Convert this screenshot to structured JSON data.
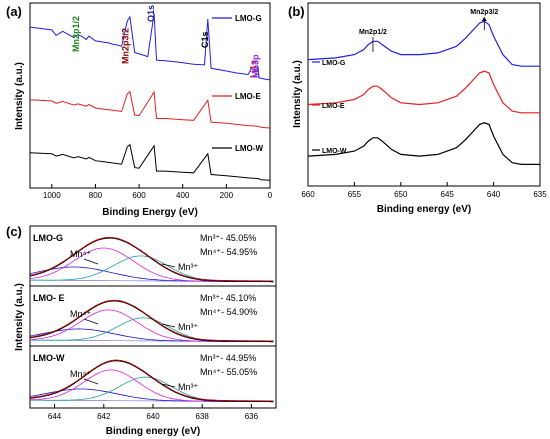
{
  "chart_data": [
    {
      "panel": "(a)",
      "type": "line",
      "xlabel": "Binding Energy (eV)",
      "ylabel": "Intensity (a.u.)",
      "xlim": [
        1100,
        0
      ],
      "xticks": [
        1000,
        800,
        600,
        400,
        200,
        0
      ],
      "y_ticks_shown": false,
      "grid": false,
      "legend_placement": "right, beside each trace",
      "series": [
        {
          "name": "LMO-G",
          "color": "#1f1fe6",
          "x": [
            1100,
            1000,
            980,
            950,
            900,
            880,
            860,
            842,
            830,
            800,
            760,
            740,
            720,
            700,
            680,
            654,
            642,
            620,
            600,
            560,
            531,
            520,
            480,
            420,
            350,
            300,
            285,
            270,
            200,
            150,
            100,
            85,
            60,
            55,
            50,
            20,
            0
          ],
          "y": [
            8.0,
            7.6,
            6.8,
            7.4,
            6.5,
            6.9,
            6.6,
            6.2,
            6.7,
            6.0,
            5.8,
            5.7,
            5.5,
            5.4,
            5.2,
            8.9,
            9.5,
            4.3,
            4.1,
            3.7,
            10.0,
            3.2,
            3.1,
            2.9,
            2.6,
            2.5,
            9.2,
            2.0,
            1.6,
            1.3,
            1.1,
            2.0,
            1.5,
            2.3,
            0.6,
            0.4,
            0.3
          ]
        },
        {
          "name": "LMO-E",
          "color": "#e62020",
          "x": [
            1100,
            1000,
            980,
            950,
            900,
            880,
            842,
            830,
            800,
            760,
            720,
            680,
            654,
            642,
            620,
            600,
            531,
            520,
            480,
            400,
            350,
            285,
            270,
            200,
            100,
            55,
            40,
            0
          ],
          "y": [
            6.0,
            5.8,
            5.4,
            5.7,
            5.1,
            5.3,
            4.9,
            5.2,
            4.6,
            4.4,
            4.2,
            4.0,
            7.0,
            7.4,
            3.4,
            3.3,
            7.3,
            2.8,
            2.8,
            2.6,
            2.5,
            5.9,
            2.2,
            2.0,
            1.6,
            1.5,
            1.3,
            1.2
          ]
        },
        {
          "name": "LMO-W",
          "color": "#000000",
          "x": [
            1100,
            1000,
            980,
            950,
            900,
            880,
            842,
            830,
            800,
            760,
            720,
            680,
            654,
            642,
            620,
            600,
            531,
            520,
            480,
            400,
            350,
            285,
            270,
            200,
            100,
            55,
            40,
            0
          ],
          "y": [
            5.8,
            5.6,
            5.2,
            5.5,
            4.9,
            5.1,
            4.7,
            5.0,
            4.4,
            4.2,
            4.0,
            3.8,
            6.8,
            7.2,
            3.2,
            3.1,
            7.0,
            2.6,
            2.6,
            2.4,
            2.3,
            5.6,
            2.0,
            1.8,
            1.4,
            1.3,
            1.1,
            1.0
          ]
        }
      ],
      "annotations": [
        {
          "text": "Mn2p1/2",
          "color": "#1a8a1a"
        },
        {
          "text": "Mn2p3/2",
          "color": "#8b0000"
        },
        {
          "text": "O1s",
          "color": "#1a1aa0"
        },
        {
          "text": "C1s",
          "color": "#000000"
        },
        {
          "text": "Li1s",
          "color": "#e02020"
        },
        {
          "text": "Mn3p",
          "color": "#8a2be2"
        }
      ]
    },
    {
      "panel": "(b)",
      "type": "line",
      "xlabel": "Binding energy (eV)",
      "ylabel": "Intensity (a.u.)",
      "xlim": [
        660,
        635
      ],
      "xticks": [
        660,
        655,
        650,
        645,
        640,
        635
      ],
      "y_ticks_shown": false,
      "grid": false,
      "legend_placement": "left, above each trace",
      "series": [
        {
          "name": "LMO-G",
          "color": "#1f1fe6",
          "x": [
            660,
            657,
            655,
            654,
            653.5,
            653,
            652.5,
            652,
            651,
            650,
            648,
            646,
            644,
            643,
            642,
            641.5,
            641,
            640.5,
            640,
            639,
            638,
            637,
            636,
            635
          ],
          "y": [
            7.6,
            7.7,
            7.9,
            8.2,
            8.5,
            8.7,
            8.7,
            8.5,
            8.1,
            7.9,
            7.9,
            8.0,
            8.4,
            8.9,
            9.5,
            9.8,
            9.9,
            9.7,
            9.0,
            7.9,
            7.3,
            7.2,
            7.2,
            7.2
          ]
        },
        {
          "name": "LMO-E",
          "color": "#e62020",
          "x": [
            660,
            657,
            655,
            654,
            653.5,
            653,
            652.5,
            652,
            651,
            650,
            648,
            646,
            644,
            643,
            642,
            641.5,
            641,
            640.5,
            640,
            639,
            638,
            637,
            636,
            635
          ],
          "y": [
            4.9,
            5.0,
            5.2,
            5.5,
            5.8,
            6.0,
            6.0,
            5.8,
            5.3,
            5.0,
            4.9,
            5.0,
            5.4,
            5.9,
            6.5,
            6.8,
            6.9,
            6.8,
            6.1,
            5.0,
            4.5,
            4.4,
            4.4,
            4.4
          ]
        },
        {
          "name": "LMO-W",
          "color": "#000000",
          "x": [
            660,
            657,
            655,
            654,
            653.5,
            653,
            652.5,
            652,
            651,
            650,
            648,
            646,
            644,
            643,
            642,
            641.5,
            641,
            640.5,
            640,
            639,
            638,
            637,
            636,
            635
          ],
          "y": [
            1.8,
            1.9,
            2.1,
            2.4,
            2.7,
            2.9,
            2.9,
            2.7,
            2.2,
            1.9,
            1.8,
            1.9,
            2.3,
            2.8,
            3.4,
            3.7,
            3.8,
            3.7,
            3.0,
            1.9,
            1.4,
            1.3,
            1.3,
            1.3
          ]
        }
      ],
      "annotations": [
        {
          "text": "Mn2p1/2"
        },
        {
          "text": "Mn2p3/2"
        }
      ]
    },
    {
      "panel": "(c)",
      "type": "line",
      "xlabel": "Binding energy (eV)",
      "ylabel": "Intensity (a.u.)",
      "xlim": [
        645,
        635
      ],
      "xticks": [
        644,
        642,
        640,
        638,
        636
      ],
      "y_ticks_shown": false,
      "grid": false,
      "subpanels": [
        {
          "name": "LMO-G",
          "mn3_text": "Mn³⁺- 45.05%",
          "mn4_text": "Mn⁴⁺- 54.95%",
          "label_mn4": "Mn⁴⁺",
          "label_mn3": "Mn³⁺",
          "peak_mn4": {
            "center": 642.0,
            "height": 0.85,
            "width": 1.2
          },
          "peak_mn3": {
            "center": 640.5,
            "height": 0.65,
            "width": 1.1
          },
          "peak_extra": {
            "center": 643.2,
            "height": 0.35,
            "width": 1.5
          }
        },
        {
          "name": "LMO- E",
          "mn3_text": "Mn³⁺- 45.10%",
          "mn4_text": "Mn⁴⁺- 54.90%",
          "label_mn4": "Mn⁴⁺",
          "label_mn3": "Mn³⁺",
          "peak_mn4": {
            "center": 641.8,
            "height": 0.8,
            "width": 1.15
          },
          "peak_mn3": {
            "center": 640.4,
            "height": 0.6,
            "width": 1.05
          },
          "peak_extra": {
            "center": 643.0,
            "height": 0.3,
            "width": 1.4
          }
        },
        {
          "name": "LMO-W",
          "mn3_text": "Mn³⁺- 44.95%",
          "mn4_text": "Mn⁴⁺- 55.05%",
          "label_mn4": "Mn⁴⁺",
          "label_mn3": "Mn³⁺",
          "peak_mn4": {
            "center": 641.7,
            "height": 0.8,
            "width": 1.1
          },
          "peak_mn3": {
            "center": 640.3,
            "height": 0.62,
            "width": 1.05
          },
          "peak_extra": {
            "center": 642.9,
            "height": 0.3,
            "width": 1.4
          }
        }
      ],
      "fit_colors": {
        "envelope": "#b00000",
        "mn4": "#e020e0",
        "mn3": "#20a0a0",
        "extra": "#1a1ad0",
        "raw": "#000000"
      }
    }
  ]
}
